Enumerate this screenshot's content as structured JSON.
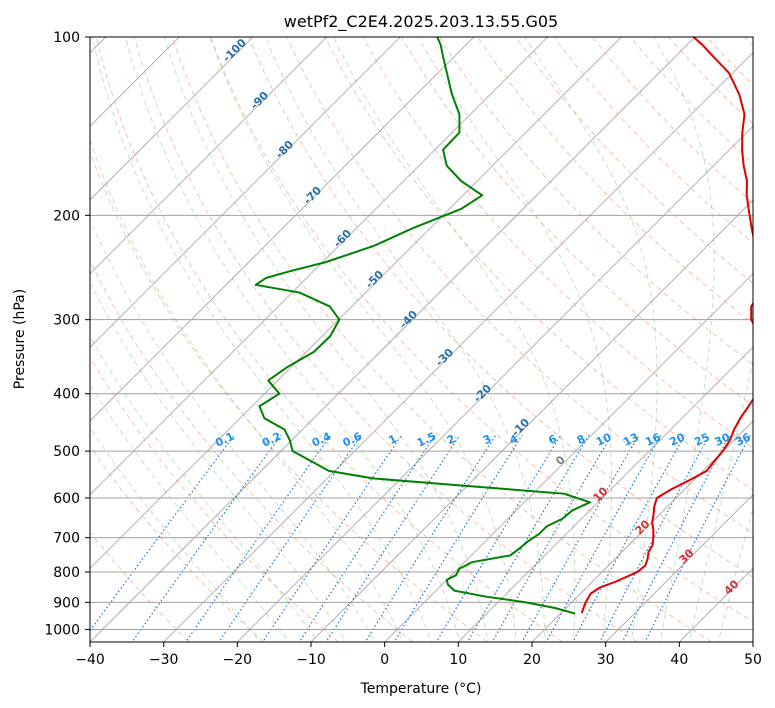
{
  "chart_data": {
    "type": "line",
    "title": "wetPf2_C2E4.2025.203.13.55.G05",
    "xlabel": "Temperature (°C)",
    "ylabel": "Pressure (hPa)",
    "xlim": [
      -40,
      50
    ],
    "ylim": [
      1050,
      100
    ],
    "y_scale": "log",
    "grid": true,
    "x_ticks": [
      -40,
      -30,
      -20,
      -10,
      0,
      10,
      20,
      30,
      40,
      50
    ],
    "y_ticks": [
      100,
      200,
      300,
      400,
      500,
      600,
      700,
      800,
      900,
      1000
    ],
    "skew_degrees": 45,
    "series": [
      {
        "color": "#e00000",
        "p": [
          938,
          900,
          870,
          850,
          830,
          800,
          780,
          760,
          740,
          720,
          700,
          680,
          660,
          640,
          620,
          600,
          580,
          560,
          540,
          520,
          500,
          480,
          460,
          440,
          420,
          400,
          380,
          360,
          340,
          320,
          300,
          285,
          270,
          255,
          240,
          225,
          210,
          195,
          185,
          175,
          165,
          155,
          145,
          135,
          125,
          115,
          108,
          103,
          100
        ],
        "t": [
          22.8,
          21.9,
          21.4,
          21.8,
          23.2,
          24.8,
          25.0,
          24.4,
          23.6,
          23.2,
          22.3,
          21.3,
          20.1,
          19.2,
          18.2,
          17.4,
          18.2,
          19.4,
          20.5,
          20.2,
          20.0,
          19.5,
          18.6,
          17.9,
          17.4,
          16.8,
          16.1,
          14.4,
          12.0,
          9.4,
          6.0,
          4.2,
          3.5,
          2.1,
          -0.6,
          -3.5,
          -6.4,
          -9.4,
          -11.5,
          -13.4,
          -15.9,
          -18.3,
          -20.6,
          -22.8,
          -26.2,
          -30.5,
          -34.8,
          -38.0,
          -40.2
        ]
      },
      {
        "color": "#008000",
        "p": [
          940,
          920,
          900,
          880,
          860,
          840,
          825,
          810,
          790,
          770,
          750,
          730,
          710,
          690,
          670,
          650,
          630,
          610,
          590,
          570,
          556,
          540,
          520,
          500,
          480,
          460,
          440,
          420,
          400,
          380,
          360,
          340,
          320,
          300,
          285,
          270,
          262,
          255,
          248,
          240,
          225,
          210,
          195,
          185,
          175,
          165,
          155,
          145,
          135,
          125,
          115,
          108,
          103,
          100
        ],
        "t": [
          22.0,
          18.5,
          13.8,
          7.5,
          2.5,
          0.8,
          0.0,
          0.6,
          0.2,
          1.0,
          5.3,
          5.6,
          5.8,
          6.3,
          6.3,
          7.4,
          7.6,
          8.9,
          4.2,
          -12.0,
          -23.8,
          -30.8,
          -34.5,
          -38.4,
          -40.2,
          -42.4,
          -46.7,
          -49.0,
          -48.0,
          -51.3,
          -50.5,
          -49.0,
          -48.9,
          -49.9,
          -53.0,
          -59.0,
          -66.0,
          -65.5,
          -63.0,
          -59.6,
          -55.2,
          -52.3,
          -48.4,
          -47.4,
          -52.2,
          -56.2,
          -58.9,
          -59.0,
          -61.5,
          -65.2,
          -68.8,
          -71.5,
          -73.5,
          -75.0
        ]
      }
    ],
    "dry_adiabat_labels": [
      "-100",
      "-90",
      "-80",
      "-70",
      "-60",
      "-50",
      "-40",
      "-30",
      "-20",
      "-10",
      "0",
      "10",
      "20",
      "30",
      "40"
    ],
    "mixing_ratio_labels": [
      "0.1",
      "0.2",
      "0.4",
      "0.6",
      "1",
      "1.5",
      "2",
      "3",
      "4",
      "6",
      "8",
      "10",
      "13",
      "16",
      "20",
      "25",
      "30",
      "36"
    ]
  }
}
